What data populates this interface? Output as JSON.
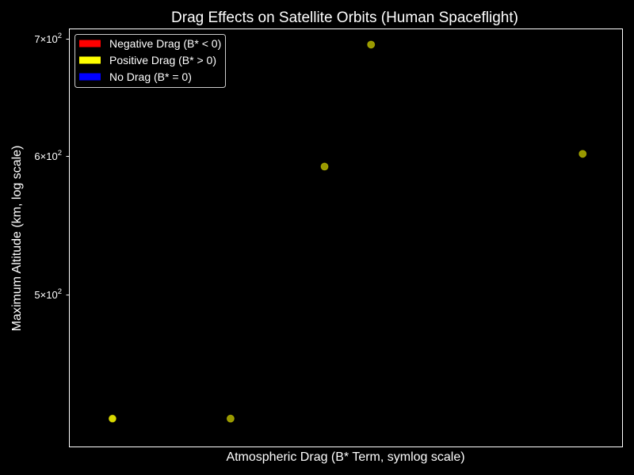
{
  "chart_data": {
    "type": "scatter",
    "title": "Drag Effects on Satellite Orbits (Human Spaceflight)",
    "xlabel": "Atmospheric Drag (B* Term, symlog scale)",
    "ylabel": "Maximum Altitude (km, log scale)",
    "xscale": "symlog",
    "yscale": "log",
    "grid": false,
    "legend_position": "top-left",
    "background": "#000000",
    "y_ticks": [
      {
        "value": 500,
        "mantissa": "5",
        "base": "10",
        "exp": "2"
      },
      {
        "value": 600,
        "mantissa": "6",
        "base": "10",
        "exp": "2"
      },
      {
        "value": 700,
        "mantissa": "7",
        "base": "10",
        "exp": "2"
      }
    ],
    "legend": [
      {
        "label": "Negative Drag (B* < 0)",
        "color": "#ff0000"
      },
      {
        "label": "Positive Drag (B* > 0)",
        "color": "#ffff00"
      },
      {
        "label": "No Drag (B* = 0)",
        "color": "#0000ff"
      }
    ],
    "points": [
      {
        "x": 0.00012,
        "y": 425,
        "category": "positive",
        "color": "#ffff00",
        "opacity": 0.85
      },
      {
        "x": 0.00035,
        "y": 425,
        "category": "positive",
        "color": "#ffff00",
        "opacity": 0.6
      },
      {
        "x": 0.0008,
        "y": 592,
        "category": "positive",
        "color": "#ffff00",
        "opacity": 0.6
      },
      {
        "x": 0.0012,
        "y": 695,
        "category": "positive",
        "color": "#ffff00",
        "opacity": 0.6
      },
      {
        "x": 0.0075,
        "y": 602,
        "category": "positive",
        "color": "#ffff00",
        "opacity": 0.6
      }
    ]
  }
}
